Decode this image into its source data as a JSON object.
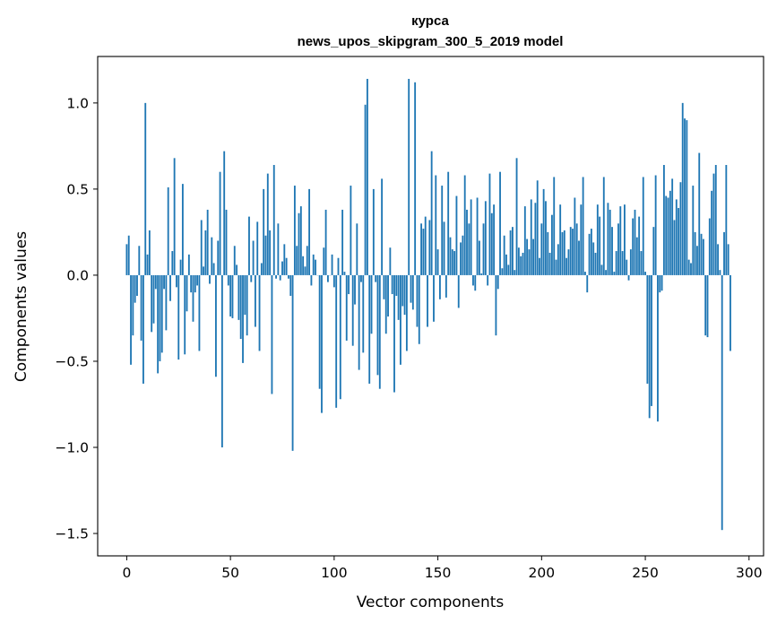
{
  "chart_data": {
    "type": "bar",
    "title": [
      "курса",
      "news_upos_skipgram_300_5_2019 model"
    ],
    "xlabel": "Vector components",
    "ylabel": "Components values",
    "xlim": [
      -14,
      307
    ],
    "ylim": [
      -1.63,
      1.27
    ],
    "xticks": [
      0,
      50,
      100,
      150,
      200,
      250,
      300
    ],
    "yticks": [
      1.0,
      0.5,
      0.0,
      -0.5,
      -1.0,
      -1.5
    ],
    "ytick_labels": [
      "1.0",
      "0.5",
      "0.0",
      "−0.5",
      "−1.0",
      "−1.5"
    ],
    "grid": false,
    "legend": "none",
    "bar_color": "#1f77b4",
    "values": [
      0.18,
      0.23,
      -0.52,
      -0.35,
      -0.16,
      -0.12,
      0.17,
      -0.38,
      -0.63,
      1.0,
      0.12,
      0.26,
      -0.33,
      -0.28,
      -0.08,
      -0.57,
      -0.5,
      -0.45,
      -0.08,
      -0.32,
      0.51,
      -0.15,
      0.14,
      0.68,
      -0.07,
      -0.49,
      0.09,
      0.53,
      -0.46,
      -0.21,
      0.12,
      -0.1,
      -0.27,
      -0.1,
      -0.06,
      -0.44,
      0.32,
      0.05,
      0.26,
      0.38,
      -0.05,
      0.22,
      0.07,
      -0.59,
      0.2,
      0.6,
      -1.0,
      0.72,
      0.38,
      -0.06,
      -0.24,
      -0.25,
      0.17,
      0.06,
      -0.26,
      -0.37,
      -0.51,
      -0.23,
      -0.35,
      0.34,
      -0.04,
      0.2,
      -0.3,
      0.31,
      -0.44,
      0.07,
      0.5,
      0.23,
      0.59,
      0.26,
      -0.69,
      0.64,
      -0.02,
      0.3,
      -0.03,
      0.08,
      0.18,
      0.1,
      -0.02,
      -0.12,
      -1.02,
      0.52,
      0.17,
      0.36,
      0.4,
      0.11,
      0.05,
      0.17,
      0.5,
      -0.06,
      0.12,
      0.09,
      0.0,
      -0.66,
      -0.8,
      0.16,
      0.38,
      -0.04,
      0.0,
      0.12,
      -0.07,
      -0.77,
      0.1,
      -0.72,
      0.38,
      0.02,
      -0.38,
      -0.11,
      0.52,
      -0.41,
      -0.17,
      0.3,
      -0.55,
      -0.04,
      -0.45,
      0.99,
      1.14,
      -0.63,
      -0.34,
      0.5,
      -0.04,
      -0.58,
      -0.66,
      0.56,
      -0.14,
      -0.34,
      -0.24,
      0.16,
      -0.11,
      -0.68,
      -0.12,
      -0.26,
      -0.52,
      -0.18,
      -0.23,
      -0.44,
      1.14,
      -0.16,
      -0.2,
      1.12,
      -0.3,
      -0.4,
      0.3,
      0.27,
      0.34,
      -0.3,
      0.32,
      0.72,
      -0.27,
      0.58,
      0.15,
      -0.14,
      0.52,
      0.31,
      -0.13,
      0.6,
      0.22,
      0.15,
      0.14,
      0.46,
      -0.19,
      0.19,
      0.23,
      0.58,
      0.38,
      0.3,
      0.44,
      -0.06,
      -0.09,
      0.45,
      0.2,
      0.01,
      0.3,
      0.43,
      -0.06,
      0.59,
      0.36,
      0.41,
      -0.35,
      -0.08,
      0.6,
      0.04,
      0.23,
      0.12,
      0.06,
      0.26,
      0.28,
      0.03,
      0.68,
      0.16,
      0.11,
      0.13,
      0.4,
      0.21,
      0.15,
      0.44,
      0.21,
      0.42,
      0.55,
      0.1,
      0.3,
      0.5,
      0.43,
      0.25,
      0.13,
      0.35,
      0.57,
      0.09,
      0.18,
      0.41,
      0.25,
      0.26,
      0.1,
      0.15,
      0.28,
      0.27,
      0.45,
      0.3,
      0.2,
      0.41,
      0.57,
      0.02,
      -0.1,
      0.24,
      0.27,
      0.19,
      0.13,
      0.41,
      0.34,
      0.06,
      0.57,
      0.03,
      0.42,
      0.38,
      0.28,
      0.02,
      0.14,
      0.3,
      0.4,
      0.14,
      0.41,
      0.09,
      -0.03,
      0.15,
      0.33,
      0.38,
      0.22,
      0.34,
      0.14,
      0.57,
      0.02,
      -0.63,
      -0.83,
      -0.76,
      0.28,
      0.58,
      -0.85,
      -0.1,
      -0.09,
      0.64,
      0.46,
      0.45,
      0.49,
      0.56,
      0.32,
      0.44,
      0.39,
      0.54,
      1.0,
      0.91,
      0.9,
      0.09,
      0.07,
      0.52,
      0.25,
      0.17,
      0.71,
      0.24,
      0.21,
      -0.35,
      -0.36,
      0.33,
      0.49,
      0.59,
      0.64,
      0.18,
      0.03,
      -1.48,
      0.25,
      0.64,
      0.18,
      -0.44
    ]
  }
}
